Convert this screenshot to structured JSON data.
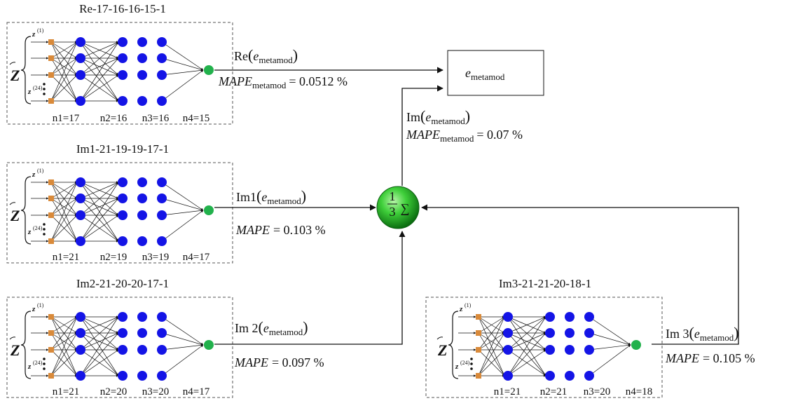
{
  "networks": [
    {
      "title": "Re-17-16-16-15-1",
      "layers": [
        "n1=17",
        "n2=16",
        "n3=16",
        "n4=15"
      ],
      "input_top": "(1)",
      "input_bottom": "(24)",
      "output_func": "Re",
      "output_arg": "e",
      "output_sub": "metamod",
      "mape_label": "MAPE",
      "mape_sub": "metamod",
      "mape_value": "= 0.0512 %"
    },
    {
      "title": "Im1-21-19-19-17-1",
      "layers": [
        "n1=21",
        "n2=19",
        "n3=19",
        "n4=17"
      ],
      "input_top": "(1)",
      "input_bottom": "(24)",
      "output_func": "Im1",
      "output_arg": "e",
      "output_sub": "metamod",
      "mape_label": "MAPE",
      "mape_sub": "",
      "mape_value": "= 0.103 %"
    },
    {
      "title": "Im2-21-20-20-17-1",
      "layers": [
        "n1=21",
        "n2=20",
        "n3=20",
        "n4=17"
      ],
      "input_top": "(1)",
      "input_bottom": "(24)",
      "output_func": "Im 2",
      "output_arg": "e",
      "output_sub": "metamod",
      "mape_label": "MAPE",
      "mape_sub": "",
      "mape_value": "= 0.097 %"
    },
    {
      "title": "Im3-21-21-20-18-1",
      "layers": [
        "n1=21",
        "n2=21",
        "n3=20",
        "n4=18"
      ],
      "input_top": "(1)",
      "input_bottom": "(24)",
      "output_func": "Im 3",
      "output_arg": "e",
      "output_sub": "metamod",
      "mape_label": "MAPE",
      "mape_sub": "",
      "mape_value": "= 0.105 %"
    }
  ],
  "input_symbol": "Z",
  "output_box": {
    "symbol": "e",
    "sub": "metamod"
  },
  "summation": {
    "numerator": "1",
    "denominator": "3",
    "symbol": "∑"
  },
  "im_result": {
    "func": "Im",
    "arg": "e",
    "sub": "metamod",
    "mape_label": "MAPE",
    "mape_sub": "metamod",
    "mape_value": "= 0.07 %"
  },
  "colors": {
    "input_node": "#d98a3a",
    "hidden_node": "#1414e6",
    "output_node": "#22b14c",
    "sum_node": "#1faa2a"
  }
}
